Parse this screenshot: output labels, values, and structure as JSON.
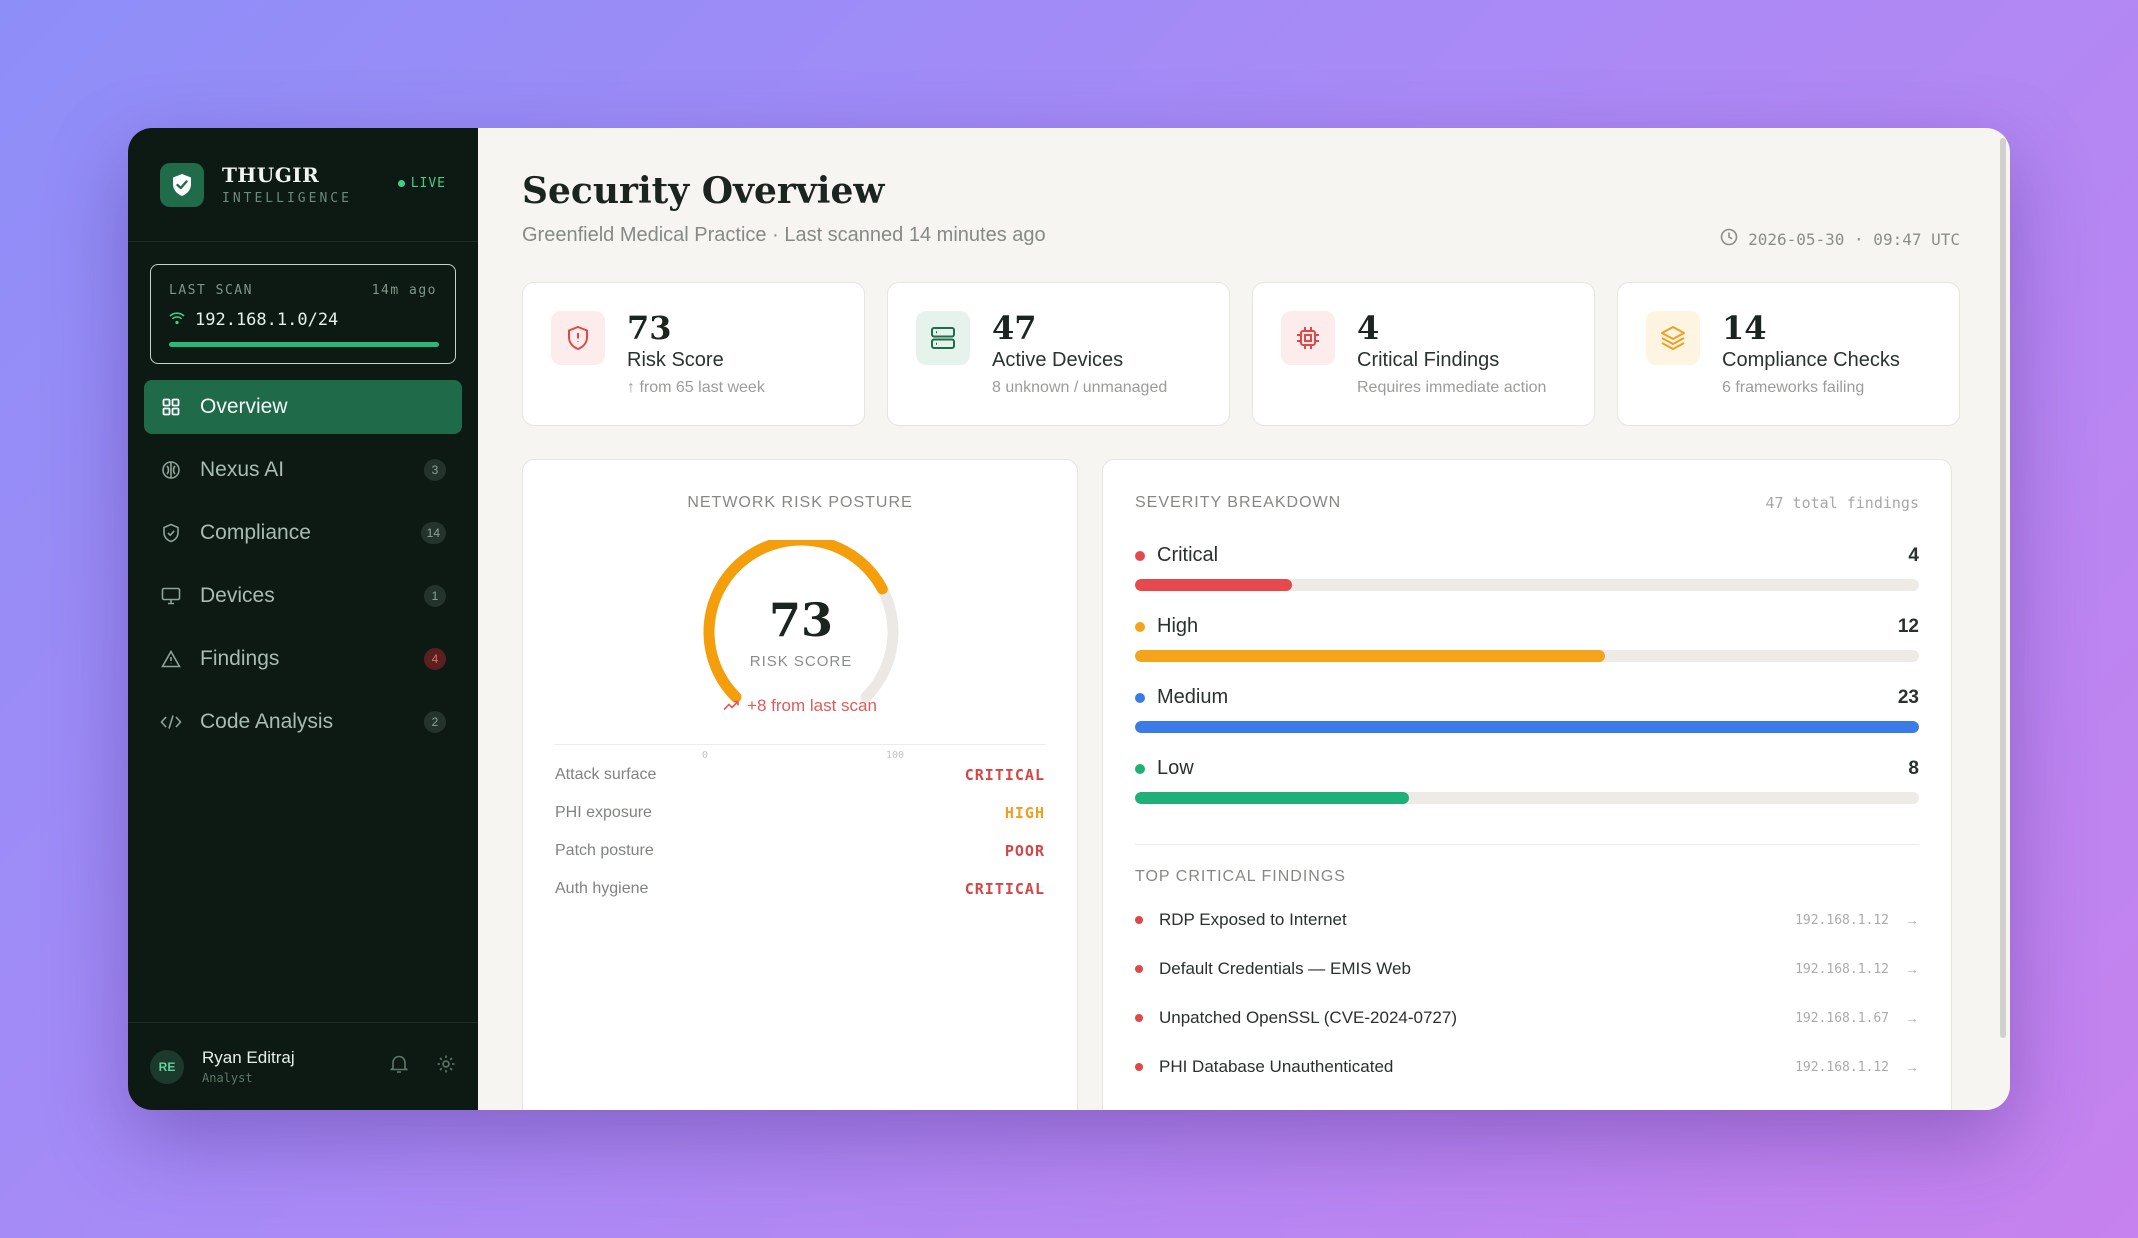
{
  "brand": {
    "name": "THUGIR",
    "sub": "INTELLIGENCE",
    "live": "LIVE"
  },
  "last_scan": {
    "label": "LAST SCAN",
    "ago": "14m ago",
    "target": "192.168.1.0/24",
    "progress": 1.0
  },
  "nav": [
    {
      "label": "Overview",
      "icon": "grid-icon",
      "badge": ""
    },
    {
      "label": "Nexus AI",
      "icon": "brain-icon",
      "badge": "3"
    },
    {
      "label": "Compliance",
      "icon": "shield-check-icon",
      "badge": "14"
    },
    {
      "label": "Devices",
      "icon": "monitor-icon",
      "badge": "1"
    },
    {
      "label": "Findings",
      "icon": "warning-icon",
      "badge": "4"
    },
    {
      "label": "Code Analysis",
      "icon": "code-icon",
      "badge": "2"
    }
  ],
  "user": {
    "initials": "RE",
    "name": "Ryan Editraj",
    "role": "Analyst"
  },
  "header": {
    "title": "Security Overview",
    "subtitle": "Greenfield Medical Practice · Last scanned 14 minutes ago",
    "timestamp": "2026-05-30 · 09:47 UTC"
  },
  "kpis": [
    {
      "value": "73",
      "label": "Risk Score",
      "sub": "↑ from 65 last week",
      "icon": "shield-alert-icon"
    },
    {
      "value": "47",
      "label": "Active Devices",
      "sub": "8 unknown / unmanaged",
      "icon": "server-icon"
    },
    {
      "value": "4",
      "label": "Critical Findings",
      "sub": "Requires immediate action",
      "icon": "chip-icon"
    },
    {
      "value": "14",
      "label": "Compliance Checks",
      "sub": "6 frameworks failing",
      "icon": "layers-icon"
    }
  ],
  "gauge": {
    "title": "NETWORK RISK POSTURE",
    "value": "73",
    "value_num": 73,
    "label": "RISK SCORE",
    "min": "0",
    "max": "100",
    "change": "+8 from last scan"
  },
  "risk_factors": [
    {
      "label": "Attack surface",
      "value": "CRITICAL",
      "color": "#d64545"
    },
    {
      "label": "PHI exposure",
      "value": "HIGH",
      "color": "#f0a020"
    },
    {
      "label": "Patch posture",
      "value": "POOR",
      "color": "#d64545"
    },
    {
      "label": "Auth hygiene",
      "value": "CRITICAL",
      "color": "#d64545"
    }
  ],
  "severity": {
    "title": "SEVERITY BREAKDOWN",
    "total": "47 total findings",
    "items": [
      {
        "name": "Critical",
        "count": "4",
        "fraction": 0.2,
        "color": "#e5484d"
      },
      {
        "name": "High",
        "count": "12",
        "fraction": 0.6,
        "color": "#f5a31a"
      },
      {
        "name": "Medium",
        "count": "23",
        "fraction": 1.0,
        "color": "#3b7be8"
      },
      {
        "name": "Low",
        "count": "8",
        "fraction": 0.35,
        "color": "#1fb07a"
      }
    ]
  },
  "top_findings": {
    "title": "TOP CRITICAL FINDINGS",
    "items": [
      {
        "name": "RDP Exposed to Internet",
        "ip": "192.168.1.12"
      },
      {
        "name": "Default Credentials — EMIS Web",
        "ip": "192.168.1.12"
      },
      {
        "name": "Unpatched OpenSSL (CVE-2024-0727)",
        "ip": "192.168.1.67"
      },
      {
        "name": "PHI Database Unauthenticated",
        "ip": "192.168.1.12"
      }
    ]
  }
}
